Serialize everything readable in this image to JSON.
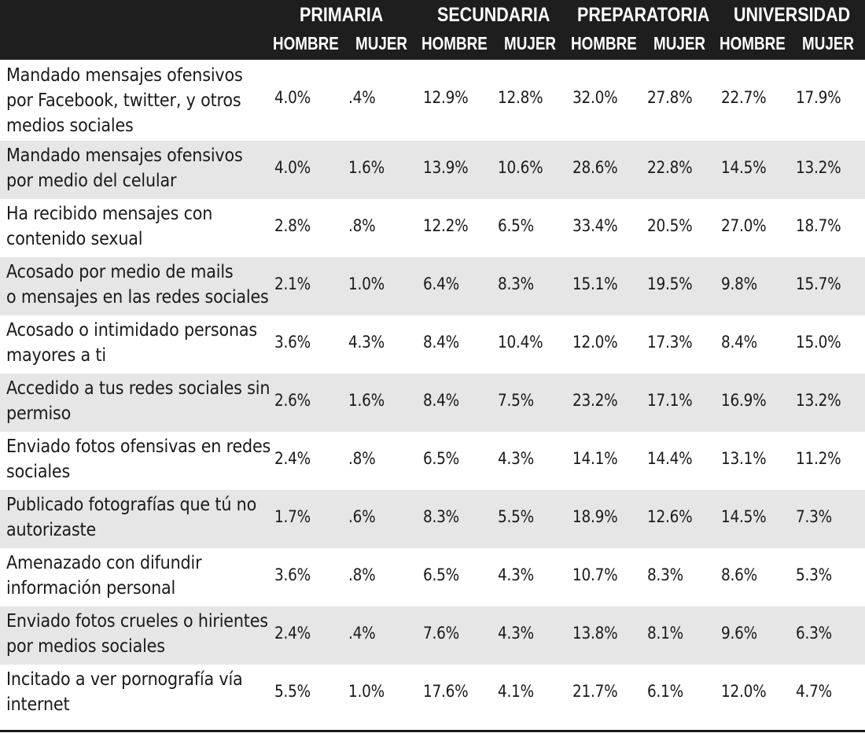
{
  "groups": [
    {
      "label": "PRIMARIA",
      "hombre": "HOMBRE",
      "mujer": "MUJER"
    },
    {
      "label": "SECUNDARIA",
      "hombre": "HOMBRE",
      "mujer": "MUJER"
    },
    {
      "label": "PREPARATORIA",
      "hombre": "HOMBRE",
      "mujer": "MUJER"
    },
    {
      "label": "UNIVERSIDAD",
      "hombre": "HOMBRE",
      "mujer": "MUJER"
    }
  ],
  "rows": [
    {
      "label": [
        "Mandado mensajes ofensivos",
        "por Facebook, twitter, y otros",
        "medios sociales"
      ],
      "values": [
        "4.0%",
        ".4%",
        "12.9%",
        "12.8%",
        "32.0%",
        "27.8%",
        "22.7%",
        "17.9%"
      ]
    },
    {
      "label": [
        "Mandado mensajes ofensivos",
        "por medio del celular"
      ],
      "values": [
        "4.0%",
        "1.6%",
        "13.9%",
        "10.6%",
        "28.6%",
        "22.8%",
        "14.5%",
        "13.2%"
      ]
    },
    {
      "label": [
        "Ha recibido mensajes con",
        "contenido sexual"
      ],
      "values": [
        "2.8%",
        ".8%",
        "12.2%",
        "6.5%",
        "33.4%",
        "20.5%",
        "27.0%",
        "18.7%"
      ]
    },
    {
      "label": [
        "Acosado por medio de mails",
        "o mensajes en las redes sociales"
      ],
      "values": [
        "2.1%",
        "1.0%",
        "6.4%",
        "8.3%",
        "15.1%",
        "19.5%",
        "9.8%",
        "15.7%"
      ]
    },
    {
      "label": [
        "Acosado o intimidado personas",
        "mayores a ti"
      ],
      "values": [
        "3.6%",
        "4.3%",
        "8.4%",
        "10.4%",
        "12.0%",
        "17.3%",
        "8.4%",
        "15.0%"
      ]
    },
    {
      "label": [
        "Accedido a tus redes sociales sin",
        "permiso"
      ],
      "values": [
        "2.6%",
        "1.6%",
        "8.4%",
        "7.5%",
        "23.2%",
        "17.1%",
        "16.9%",
        "13.2%"
      ]
    },
    {
      "label": [
        "Enviado fotos ofensivas en redes",
        "sociales"
      ],
      "values": [
        "2.4%",
        ".8%",
        "6.5%",
        "4.3%",
        "14.1%",
        "14.4%",
        "13.1%",
        "11.2%"
      ]
    },
    {
      "label": [
        "Publicado fotografías que tú no",
        "autorizaste"
      ],
      "values": [
        "1.7%",
        ".6%",
        "8.3%",
        "5.5%",
        "18.9%",
        "12.6%",
        "14.5%",
        "7.3%"
      ]
    },
    {
      "label": [
        "Amenazado con difundir",
        "información personal"
      ],
      "values": [
        "3.6%",
        ".8%",
        "6.5%",
        "4.3%",
        "10.7%",
        "8.3%",
        "8.6%",
        "5.3%"
      ]
    },
    {
      "label": [
        "Enviado fotos crueles o hirientes",
        "por medios sociales"
      ],
      "values": [
        "2.4%",
        ".4%",
        "7.6%",
        "4.3%",
        "13.8%",
        "8.1%",
        "9.6%",
        "6.3%"
      ]
    },
    {
      "label": [
        "Incitado a ver pornografía vía",
        "internet"
      ],
      "values": [
        "5.5%",
        "1.0%",
        "17.6%",
        "4.1%",
        "21.7%",
        "6.1%",
        "12.0%",
        "4.7%"
      ]
    }
  ]
}
